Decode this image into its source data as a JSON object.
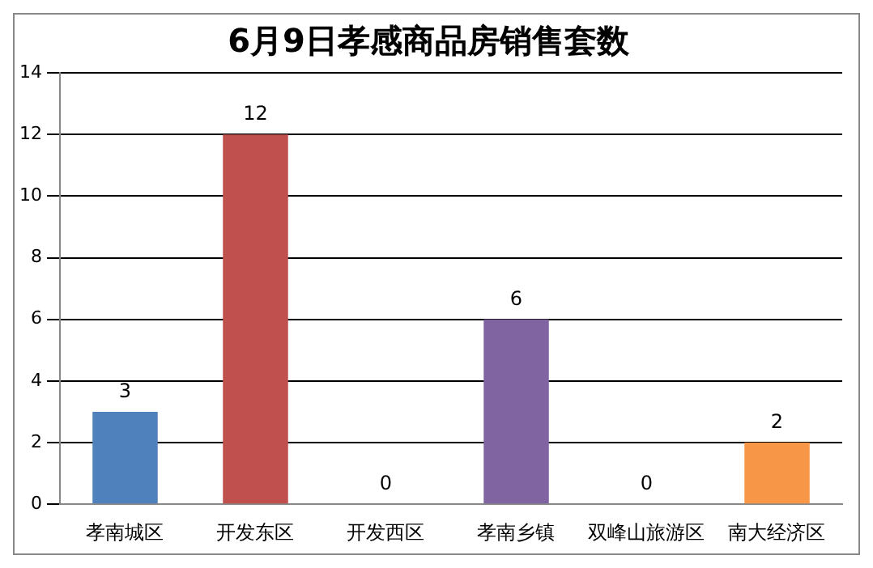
{
  "chart_data": {
    "type": "bar",
    "title": "6月9日孝感商品房销售套数",
    "categories": [
      "孝南城区",
      "开发东区",
      "开发西区",
      "孝南乡镇",
      "双峰山旅游区",
      "南大经济区"
    ],
    "values": [
      3,
      12,
      0,
      6,
      0,
      2
    ],
    "colors": [
      "#4f81bd",
      "#c0504d",
      "#9bbb59",
      "#8064a2",
      "#4bacc6",
      "#f79646"
    ],
    "ylim": [
      0,
      14
    ],
    "yticks": [
      0,
      2,
      4,
      6,
      8,
      10,
      12,
      14
    ],
    "grid": "y",
    "data_labels": true,
    "legend": false
  }
}
